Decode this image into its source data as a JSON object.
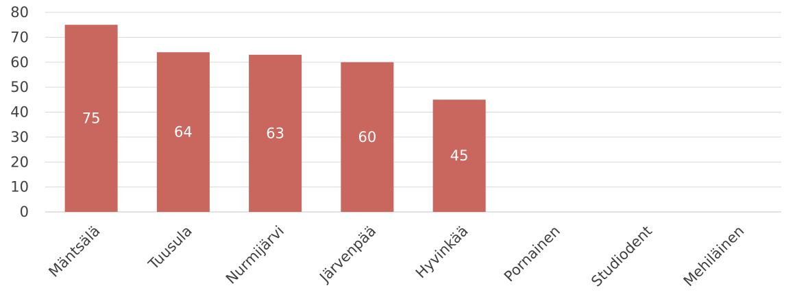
{
  "chart_data": {
    "type": "bar",
    "categories": [
      "Mäntsälä",
      "Tuusula",
      "Nurmijärvi",
      "Järvenpää",
      "Hyvinkää",
      "Pornainen",
      "Studiodent",
      "Mehiläinen"
    ],
    "values": [
      75,
      64,
      63,
      60,
      45,
      null,
      null,
      null
    ],
    "data_labels": [
      "75",
      "64",
      "63",
      "60",
      "45",
      "",
      "",
      ""
    ],
    "ylim": [
      0,
      80
    ],
    "yticks": [
      0,
      10,
      20,
      30,
      40,
      50,
      60,
      70,
      80
    ],
    "ytick_labels": [
      "0",
      "10",
      "20",
      "30",
      "40",
      "50",
      "60",
      "70",
      "80"
    ],
    "grid": true,
    "legend": "none",
    "bar_color": "#c9665e",
    "title": "",
    "xlabel": "",
    "ylabel": ""
  }
}
